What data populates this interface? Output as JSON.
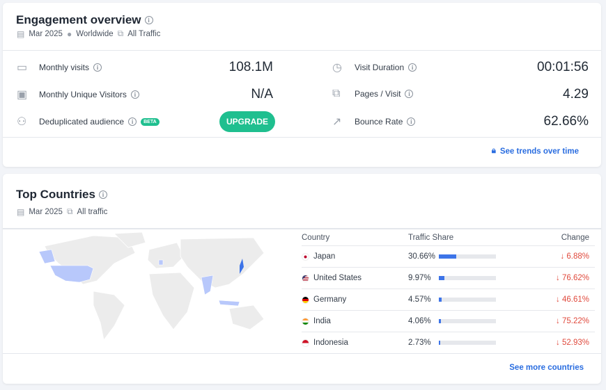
{
  "engagement": {
    "title": "Engagement overview",
    "date": "Mar 2025",
    "region": "Worldwide",
    "traffic": "All Traffic",
    "metrics_left": [
      {
        "label": "Monthly visits",
        "value": "108.1M",
        "icon": "calendar-icon"
      },
      {
        "label": "Monthly Unique Visitors",
        "value": "N/A",
        "icon": "user-card-icon"
      },
      {
        "label": "Deduplicated audience",
        "badge": "BETA",
        "button": "UPGRADE",
        "icon": "users-icon"
      }
    ],
    "metrics_right": [
      {
        "label": "Visit Duration",
        "value": "00:01:56",
        "icon": "stopwatch-icon"
      },
      {
        "label": "Pages / Visit",
        "value": "4.29",
        "icon": "pages-icon"
      },
      {
        "label": "Bounce Rate",
        "value": "62.66%",
        "icon": "bounce-icon"
      }
    ],
    "trends_link": "See trends over time"
  },
  "countries": {
    "title": "Top Countries",
    "date": "Mar 2025",
    "traffic": "All traffic",
    "headers": {
      "country": "Country",
      "share": "Traffic Share",
      "change": "Change"
    },
    "rows": [
      {
        "country": "Japan",
        "share": "30.66%",
        "share_value": 30.66,
        "change": "6.88%",
        "direction": "down",
        "flag": [
          "#ffffff",
          "#bc002d"
        ]
      },
      {
        "country": "United States",
        "share": "9.97%",
        "share_value": 9.97,
        "change": "76.62%",
        "direction": "down",
        "flag": [
          "#b22234",
          "#3c3b6e"
        ]
      },
      {
        "country": "Germany",
        "share": "4.57%",
        "share_value": 4.57,
        "change": "46.61%",
        "direction": "down",
        "flag": [
          "#000000",
          "#dd0000",
          "#ffce00"
        ]
      },
      {
        "country": "India",
        "share": "4.06%",
        "share_value": 4.06,
        "change": "75.22%",
        "direction": "down",
        "flag": [
          "#ff9933",
          "#ffffff",
          "#138808"
        ]
      },
      {
        "country": "Indonesia",
        "share": "2.73%",
        "share_value": 2.73,
        "change": "52.93%",
        "direction": "down",
        "flag": [
          "#ce1126",
          "#ffffff"
        ]
      }
    ],
    "more_link": "See more countries",
    "colors": {
      "accent": "#3d74e8",
      "highlight": "#b8c8fb",
      "negative": "#e0493c",
      "upgrade": "#1fbf8f"
    }
  }
}
